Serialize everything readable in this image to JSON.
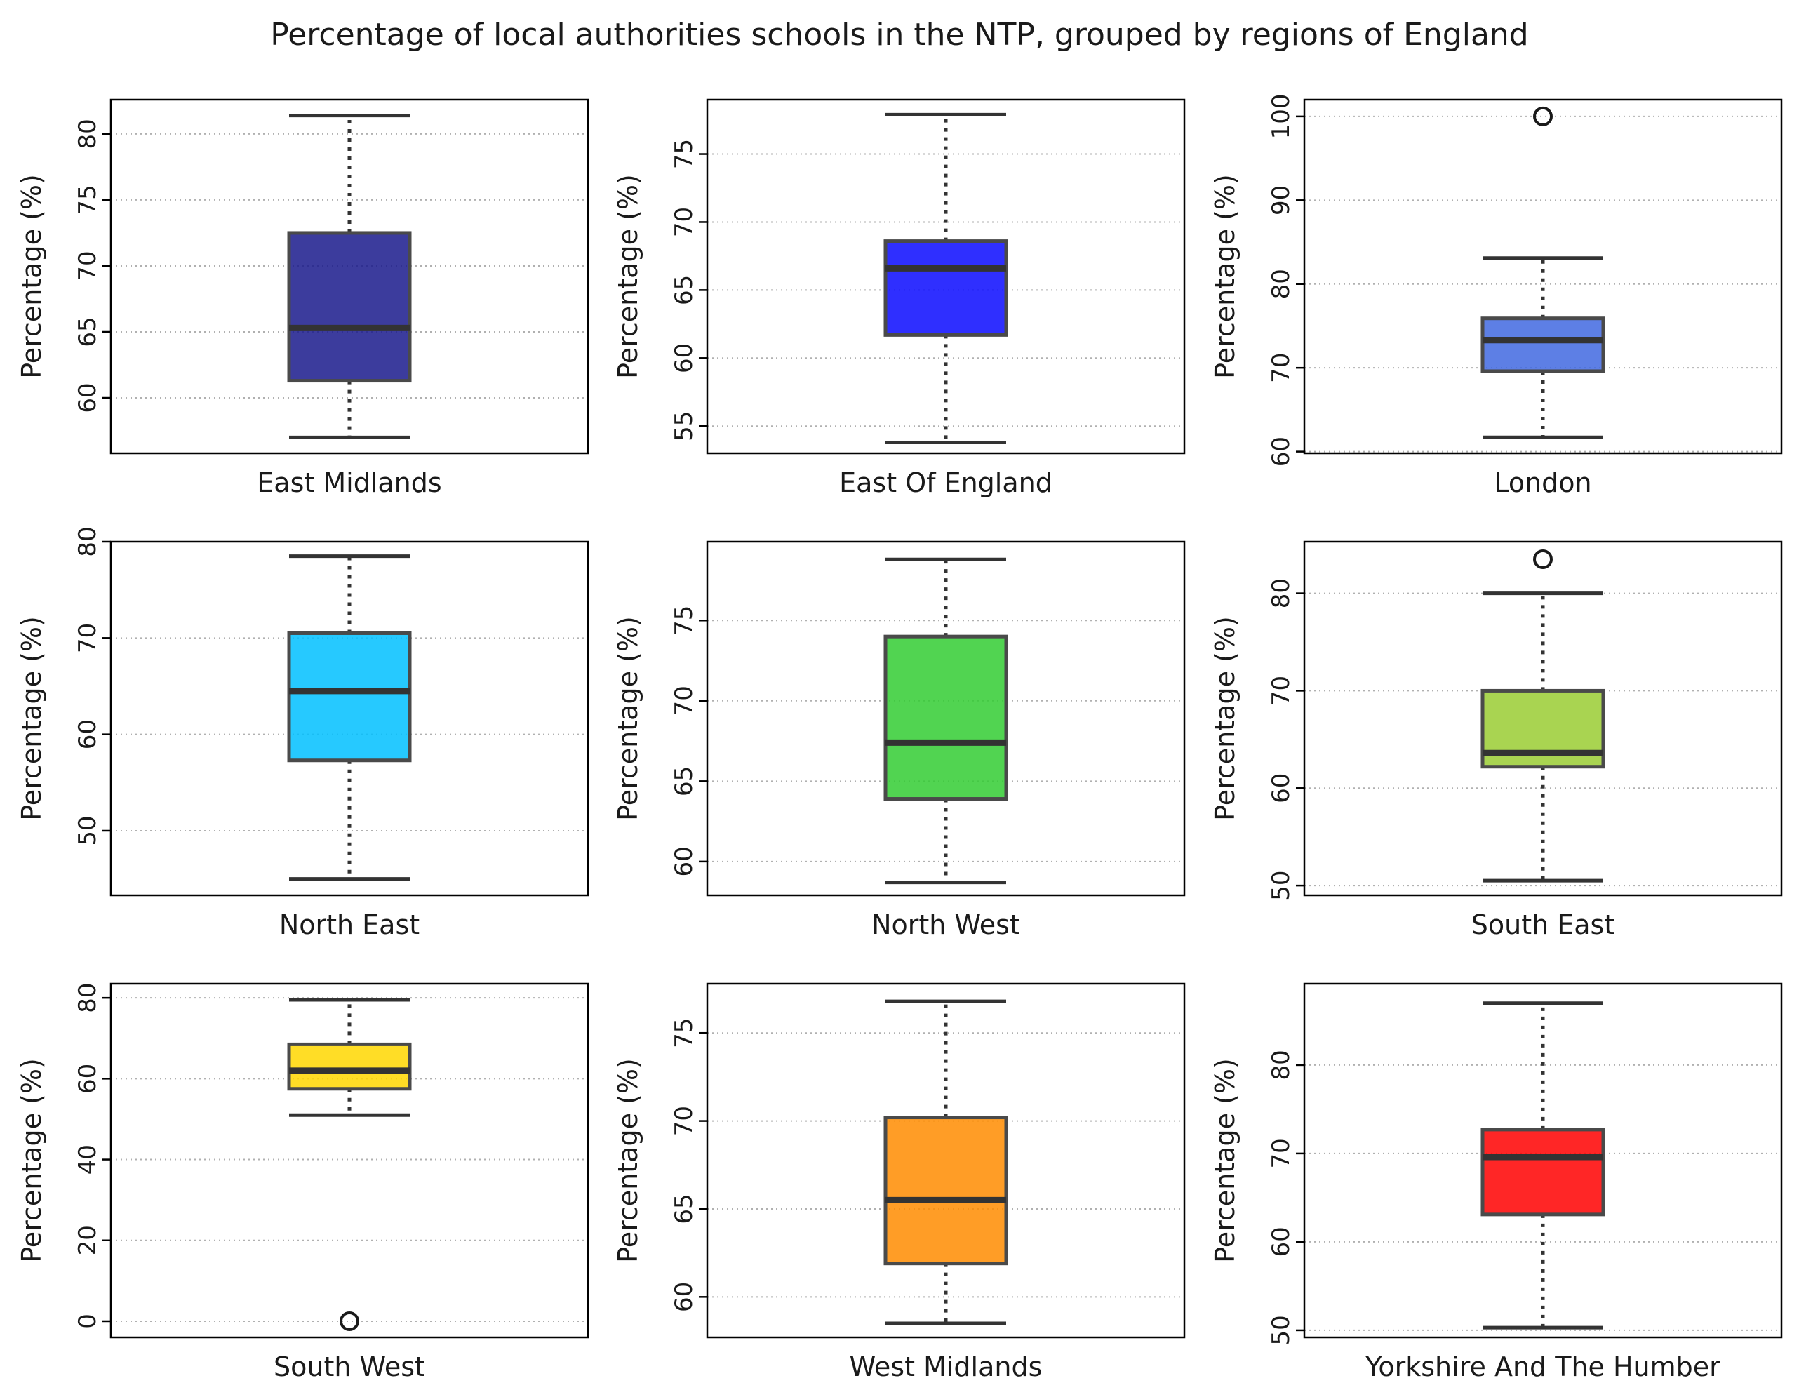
{
  "chart_data": {
    "type": "box",
    "title": "Percentage of local authorities schools in the NTP, grouped by regions of England",
    "ylabel": "Percentage (%)",
    "grid": "y-dotted",
    "colors": {
      "box_edge": "#4a4a4a",
      "median": "#333333",
      "whisker": "#333333",
      "outlier_edge": "#1a1a1a",
      "grid": "#b0b0b0"
    },
    "panels": [
      {
        "region": "East Midlands",
        "color": "#1a1a8c",
        "ylim": [
          55.8,
          82.6
        ],
        "yticks": [
          60,
          65,
          70,
          75,
          80
        ],
        "whisker_low": 57.0,
        "q1": 61.3,
        "median": 65.3,
        "q3": 72.5,
        "whisker_high": 81.4,
        "outliers": []
      },
      {
        "region": "East Of England",
        "color": "#0a0aff",
        "ylim": [
          53.0,
          79.0
        ],
        "yticks": [
          55,
          60,
          65,
          70,
          75
        ],
        "whisker_low": 53.8,
        "q1": 61.7,
        "median": 66.6,
        "q3": 68.6,
        "whisker_high": 77.9,
        "outliers": []
      },
      {
        "region": "London",
        "color": "#4169e1",
        "ylim": [
          59.8,
          102.0
        ],
        "yticks": [
          60,
          70,
          80,
          90,
          100
        ],
        "whisker_low": 61.7,
        "q1": 69.6,
        "median": 73.3,
        "q3": 75.9,
        "whisker_high": 83.1,
        "outliers": [
          100.0
        ]
      },
      {
        "region": "North East",
        "color": "#00bfff",
        "ylim": [
          43.3,
          80.0
        ],
        "yticks": [
          50,
          60,
          70,
          80
        ],
        "whisker_low": 45.0,
        "q1": 57.3,
        "median": 64.5,
        "q3": 70.5,
        "whisker_high": 78.5,
        "outliers": []
      },
      {
        "region": "North West",
        "color": "#32cd32",
        "ylim": [
          57.9,
          79.9
        ],
        "yticks": [
          60,
          65,
          70,
          75
        ],
        "whisker_low": 58.7,
        "q1": 63.9,
        "median": 67.4,
        "q3": 74.0,
        "whisker_high": 78.8,
        "outliers": []
      },
      {
        "region": "South East",
        "color": "#9acd32",
        "ylim": [
          49.0,
          85.3
        ],
        "yticks": [
          50,
          60,
          70,
          80
        ],
        "whisker_low": 50.5,
        "q1": 62.2,
        "median": 63.6,
        "q3": 70.0,
        "whisker_high": 80.0,
        "outliers": [
          83.5
        ]
      },
      {
        "region": "South West",
        "color": "#ffd700",
        "ylim": [
          -4.0,
          83.5
        ],
        "yticks": [
          0,
          20,
          40,
          60,
          80
        ],
        "whisker_low": 51.0,
        "q1": 57.5,
        "median": 62.0,
        "q3": 68.5,
        "whisker_high": 79.5,
        "outliers": [
          0.0
        ]
      },
      {
        "region": "West Midlands",
        "color": "#ff8c00",
        "ylim": [
          57.7,
          77.8
        ],
        "yticks": [
          60,
          65,
          70,
          75
        ],
        "whisker_low": 58.5,
        "q1": 61.9,
        "median": 65.5,
        "q3": 70.2,
        "whisker_high": 76.8,
        "outliers": []
      },
      {
        "region": "Yorkshire And The Humber",
        "color": "#ff0000",
        "ylim": [
          49.2,
          89.2
        ],
        "yticks": [
          50,
          60,
          70,
          80
        ],
        "whisker_low": 50.3,
        "q1": 63.1,
        "median": 69.6,
        "q3": 72.7,
        "whisker_high": 87.0,
        "outliers": []
      }
    ]
  }
}
